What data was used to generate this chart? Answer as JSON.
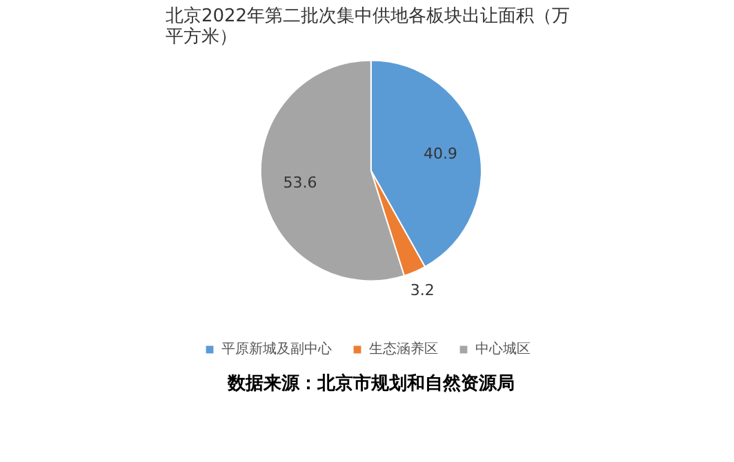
{
  "chart_data": {
    "type": "pie",
    "title": "北京2022年第二批次集中供地各板块出让面积（万平方米）",
    "categories": [
      "平原新城及副中心",
      "生态涵养区",
      "中心城区"
    ],
    "values": [
      40.9,
      3.2,
      53.6
    ],
    "colors": [
      "#5b9bd5",
      "#ed7d31",
      "#a5a5a5"
    ],
    "data_labels": true,
    "legend": "bottom",
    "annotations": [
      "数据来源：北京市规划和自然资源局"
    ]
  }
}
